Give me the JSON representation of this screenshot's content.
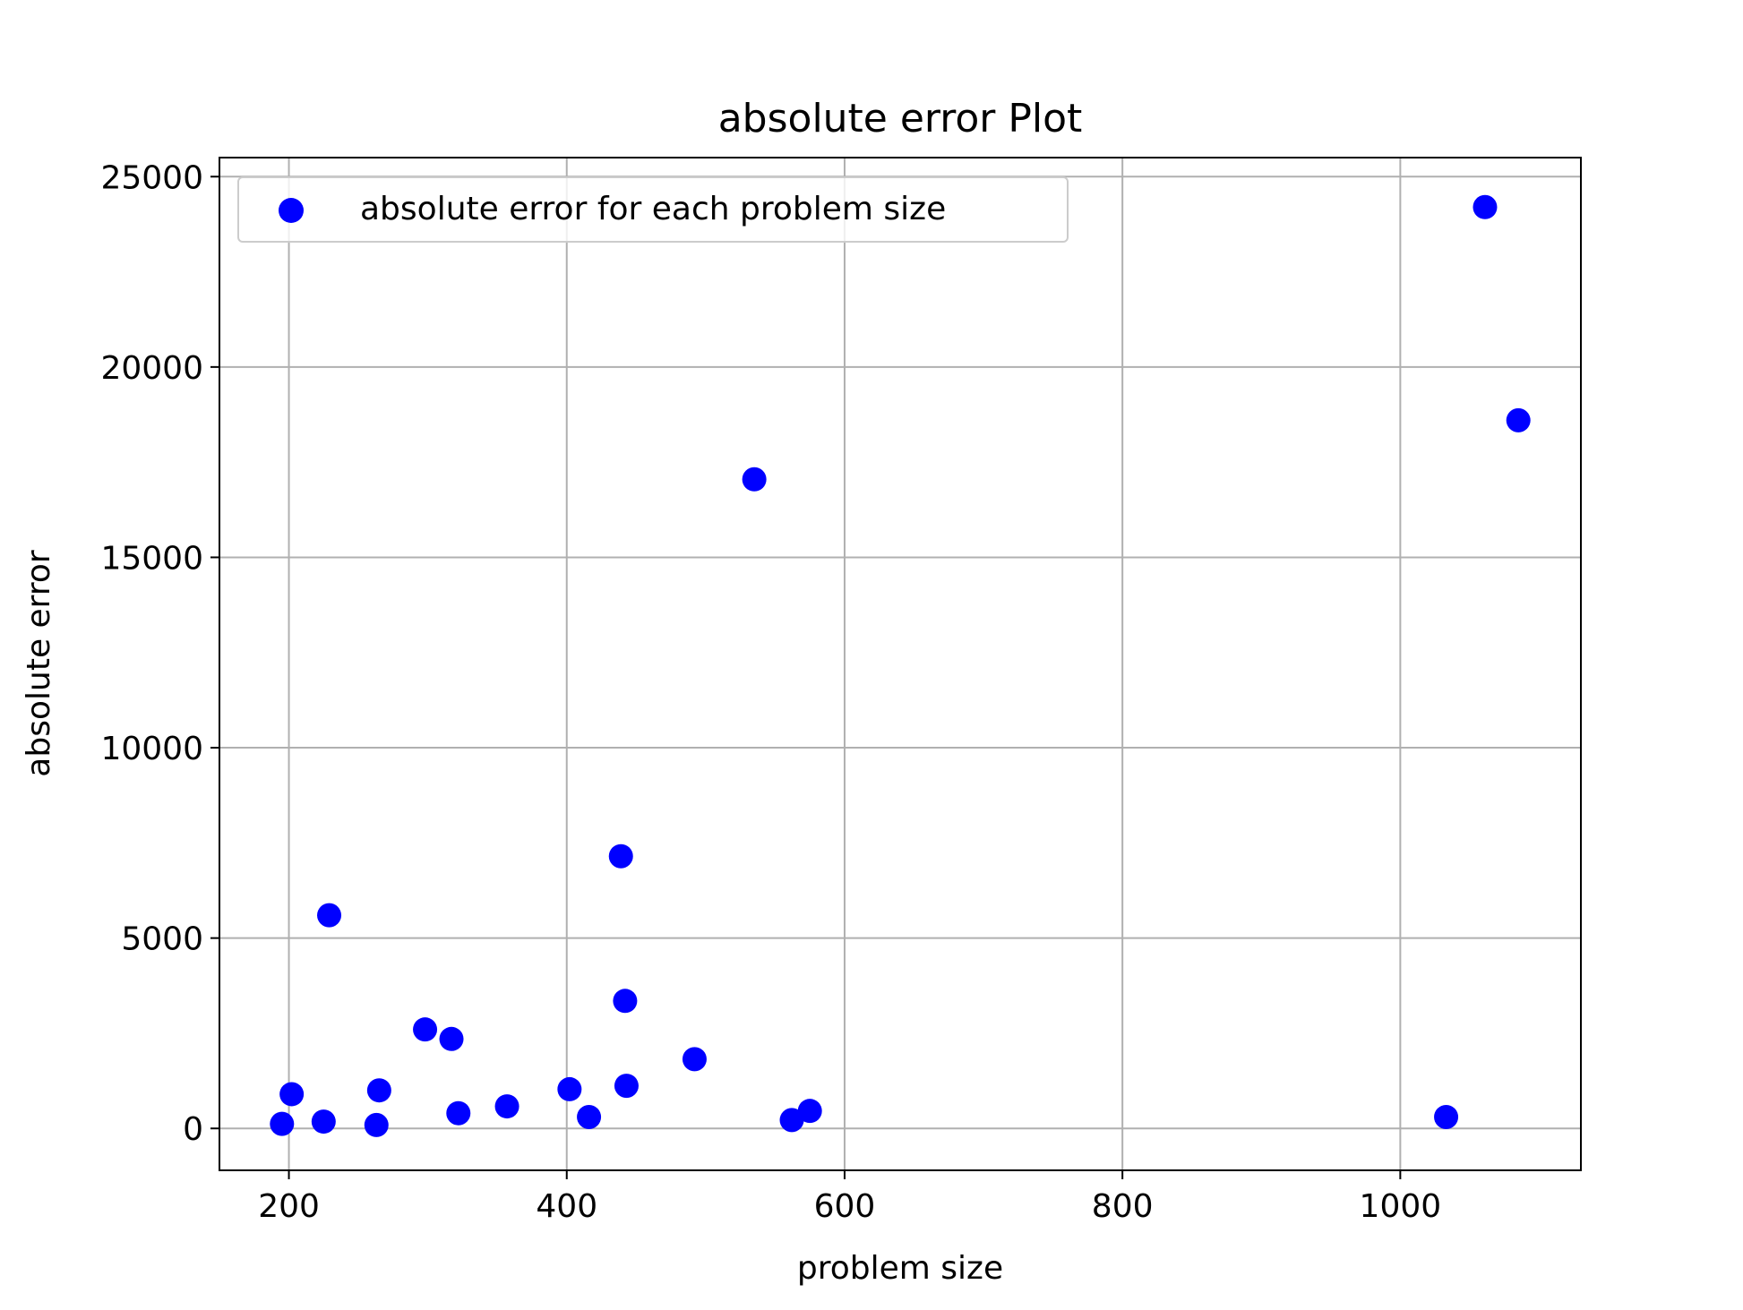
{
  "chart_data": {
    "type": "scatter",
    "title": "absolute error Plot",
    "xlabel": "problem size",
    "ylabel": "absolute error",
    "xlim": [
      150,
      1130
    ],
    "ylim": [
      -1100,
      25500
    ],
    "xticks": [
      200,
      400,
      600,
      800,
      1000
    ],
    "yticks": [
      0,
      5000,
      10000,
      15000,
      20000,
      25000
    ],
    "grid": true,
    "legend_position": "upper-left",
    "series": [
      {
        "name": "absolute error for each problem size",
        "color": "#0000ff",
        "marker": "circle",
        "points": [
          {
            "x": 195,
            "y": 120
          },
          {
            "x": 202,
            "y": 900
          },
          {
            "x": 225,
            "y": 180
          },
          {
            "x": 229,
            "y": 5600
          },
          {
            "x": 263,
            "y": 90
          },
          {
            "x": 265,
            "y": 1000
          },
          {
            "x": 298,
            "y": 2600
          },
          {
            "x": 317,
            "y": 2350
          },
          {
            "x": 322,
            "y": 400
          },
          {
            "x": 357,
            "y": 580
          },
          {
            "x": 402,
            "y": 1030
          },
          {
            "x": 416,
            "y": 300
          },
          {
            "x": 439,
            "y": 7150
          },
          {
            "x": 442,
            "y": 3350
          },
          {
            "x": 443,
            "y": 1120
          },
          {
            "x": 492,
            "y": 1820
          },
          {
            "x": 535,
            "y": 17050
          },
          {
            "x": 562,
            "y": 220
          },
          {
            "x": 575,
            "y": 460
          },
          {
            "x": 1033,
            "y": 300
          },
          {
            "x": 1061,
            "y": 24200
          },
          {
            "x": 1085,
            "y": 18600
          }
        ]
      }
    ]
  }
}
